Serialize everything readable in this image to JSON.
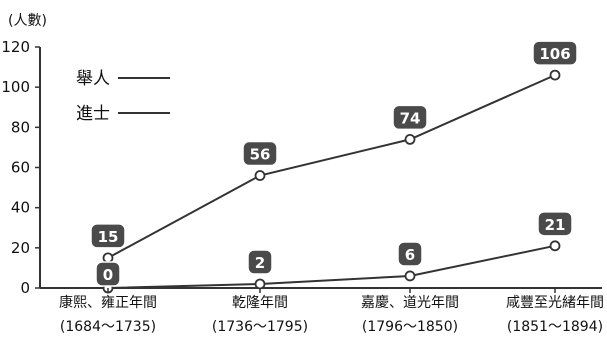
{
  "chart_data": {
    "type": "line",
    "ylabel": "(人數)",
    "ylim": [
      0,
      120
    ],
    "yticks": [
      0,
      20,
      40,
      60,
      80,
      100,
      120
    ],
    "categories": [
      {
        "name": "康熙、雍正年間",
        "years": "(1684〜1735)"
      },
      {
        "name": "乾隆年間",
        "years": "(1736〜1795)"
      },
      {
        "name": "嘉慶、道光年間",
        "years": "(1796〜1850)"
      },
      {
        "name": "咸豐至光緒年間",
        "years": "(1851〜1894)"
      }
    ],
    "series": [
      {
        "name": "舉人",
        "values": [
          15,
          56,
          74,
          106
        ]
      },
      {
        "name": "進士",
        "values": [
          0,
          2,
          6,
          21
        ]
      }
    ],
    "legend_position": "top-left",
    "grid": false
  },
  "colors": {
    "line": "#333333",
    "badge": "#4a4a4a",
    "marker_fill": "#ffffff"
  }
}
